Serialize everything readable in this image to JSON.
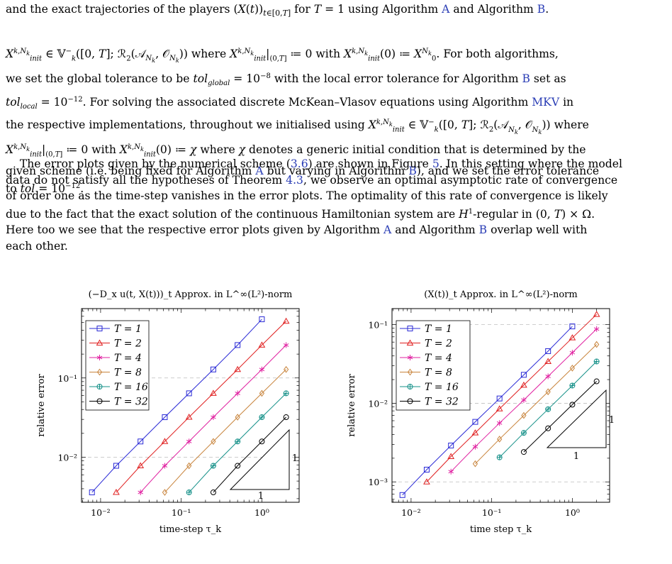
{
  "text": {
    "top_line": "and the exact trajectories of the players (X(t))_{t∈[0,T]} for T = 1 using Algorithm A and Algorithm B.",
    "p1": [
      "X^{k,N_k}_{init} ∈ 𝕍⁻_k([0,T]; ℛ₂(𝒜_{N_k}, 𝒪_{N_k})) where X^{k,N_k}_{init}|_{(0,T]} ≔ 0 with X^{k,N_k}_{init}(0) ≔ X^{N_k}_0. For both algorithms,",
      "we set the global tolerance to be tol_global = 10⁻⁸ with the local error tolerance for Algorithm B set as",
      "tol_local = 10⁻¹². For solving the associated discrete McKean–Vlasov equations using Algorithm MKV in",
      "the respective implementations, throughout we initialised using X^{k,N_k}_{init} ∈ 𝕍⁻_k([0,T]; ℛ₂(𝒜_{N_k}, 𝒪_{N_k})) where",
      "X^{k,N_k}_{init}|_{(0,T]} ≔ 0 with X^{k,N_k}_{init}(0) ≔ χ where χ denotes a generic initial condition that is determined by the",
      "given scheme (i.e. being fixed for Algorithm A but varying in Algorithm B), and we set the error tolerance",
      "to tol = 10⁻¹²."
    ],
    "p2": [
      "     The error plots given by the numerical scheme (3.6) are shown in Figure 5. In this setting where the model",
      "data do not satisfy all the hypotheses of Theorem 4.3, we observe an optimal asymptotic rate of convergence",
      "of order one as the time-step vanishes in the error plots. The optimality of this rate of convergence is likely",
      "due to the fact that the exact solution of the continuous Hamiltonian system are H¹-regular in (0, T) × Ω.",
      "Here too we see that the respective error plots given by Algorithm A and Algorithm B overlap well with",
      "each other."
    ]
  },
  "colors": {
    "link": "#2a3db5"
  },
  "chart_data": [
    {
      "type": "line",
      "title": "(−D_x u(t, X(t)))_t Approx. in L^∞(L²)-norm",
      "xlabel": "time-step τ_k",
      "ylabel": "relative error",
      "xscale": "log",
      "yscale": "log",
      "xlim": [
        0.0058,
        2.9
      ],
      "ylim": [
        0.0027,
        0.75
      ],
      "xticks": [
        0.01,
        0.1,
        1
      ],
      "xtick_labels": [
        "10⁻²",
        "10⁻¹",
        "10⁰"
      ],
      "yticks": [
        0.01,
        0.1
      ],
      "ytick_labels": [
        "10⁻²",
        "10⁻¹"
      ],
      "grid": "horizontal dashed at major y ticks",
      "legend": "top-left",
      "slope_triangle": {
        "vertical_label": "1",
        "horizontal_label": "1"
      },
      "series": [
        {
          "name": "T = 1",
          "color": "#2b2bd6",
          "marker": "square",
          "x": [
            0.0078125,
            0.015625,
            0.03125,
            0.0625,
            0.125,
            0.25,
            0.5,
            1
          ],
          "y": [
            0.0036,
            0.0078,
            0.0158,
            0.032,
            0.064,
            0.128,
            0.26,
            0.55
          ]
        },
        {
          "name": "T = 2",
          "color": "#e02020",
          "marker": "triangle",
          "x": [
            0.015625,
            0.03125,
            0.0625,
            0.125,
            0.25,
            0.5,
            1,
            2
          ],
          "y": [
            0.0036,
            0.0078,
            0.0158,
            0.032,
            0.064,
            0.128,
            0.26,
            0.52
          ]
        },
        {
          "name": "T = 4",
          "color": "#e020a0",
          "marker": "star",
          "x": [
            0.03125,
            0.0625,
            0.125,
            0.25,
            0.5,
            1,
            2
          ],
          "y": [
            0.0036,
            0.0078,
            0.0158,
            0.032,
            0.064,
            0.128,
            0.26
          ]
        },
        {
          "name": "T = 8",
          "color": "#c8843c",
          "marker": "diamond",
          "x": [
            0.0625,
            0.125,
            0.25,
            0.5,
            1,
            2
          ],
          "y": [
            0.0036,
            0.0078,
            0.0158,
            0.032,
            0.064,
            0.128
          ]
        },
        {
          "name": "T = 16",
          "color": "#149088",
          "marker": "oplus",
          "x": [
            0.125,
            0.25,
            0.5,
            1,
            2
          ],
          "y": [
            0.0036,
            0.0078,
            0.0158,
            0.032,
            0.064
          ]
        },
        {
          "name": "T = 32",
          "color": "#000000",
          "marker": "circle",
          "x": [
            0.25,
            0.5,
            1,
            2
          ],
          "y": [
            0.0036,
            0.0078,
            0.0158,
            0.032
          ]
        }
      ]
    },
    {
      "type": "line",
      "title": "(X(t))_t Approx. in L^∞(L²)-norm",
      "xlabel": "time step τ_k",
      "ylabel": "relative error",
      "xscale": "log",
      "yscale": "log",
      "xlim": [
        0.0058,
        2.9
      ],
      "ylim": [
        0.00055,
        0.16
      ],
      "xticks": [
        0.01,
        0.1,
        1
      ],
      "xtick_labels": [
        "10⁻²",
        "10⁻¹",
        "10⁰"
      ],
      "yticks": [
        0.001,
        0.01,
        0.1
      ],
      "ytick_labels": [
        "10⁻³",
        "10⁻²",
        "10⁻¹"
      ],
      "grid": "horizontal dashed at major y ticks",
      "legend": "top-left",
      "slope_triangle": {
        "vertical_label": "1",
        "horizontal_label": "1"
      },
      "series": [
        {
          "name": "T = 1",
          "color": "#2b2bd6",
          "marker": "square",
          "x": [
            0.0078125,
            0.015625,
            0.03125,
            0.0625,
            0.125,
            0.25,
            0.5,
            1
          ],
          "y": [
            0.00068,
            0.00143,
            0.0029,
            0.0058,
            0.0115,
            0.023,
            0.046,
            0.095
          ]
        },
        {
          "name": "T = 2",
          "color": "#e02020",
          "marker": "triangle",
          "x": [
            0.015625,
            0.03125,
            0.0625,
            0.125,
            0.25,
            0.5,
            1,
            2
          ],
          "y": [
            0.001,
            0.0021,
            0.0042,
            0.0085,
            0.017,
            0.034,
            0.068,
            0.135
          ]
        },
        {
          "name": "T = 4",
          "color": "#e020a0",
          "marker": "star",
          "x": [
            0.03125,
            0.0625,
            0.125,
            0.25,
            0.5,
            1,
            2
          ],
          "y": [
            0.00135,
            0.0028,
            0.0056,
            0.011,
            0.022,
            0.044,
            0.088
          ]
        },
        {
          "name": "T = 8",
          "color": "#c8843c",
          "marker": "diamond",
          "x": [
            0.0625,
            0.125,
            0.25,
            0.5,
            1,
            2
          ],
          "y": [
            0.0017,
            0.0035,
            0.007,
            0.014,
            0.028,
            0.056
          ]
        },
        {
          "name": "T = 16",
          "color": "#149088",
          "marker": "oplus",
          "x": [
            0.125,
            0.25,
            0.5,
            1,
            2
          ],
          "y": [
            0.00205,
            0.0042,
            0.0084,
            0.0168,
            0.034
          ]
        },
        {
          "name": "T = 32",
          "color": "#000000",
          "marker": "circle",
          "x": [
            0.25,
            0.5,
            1,
            2
          ],
          "y": [
            0.0024,
            0.0048,
            0.0096,
            0.019
          ]
        }
      ]
    }
  ]
}
